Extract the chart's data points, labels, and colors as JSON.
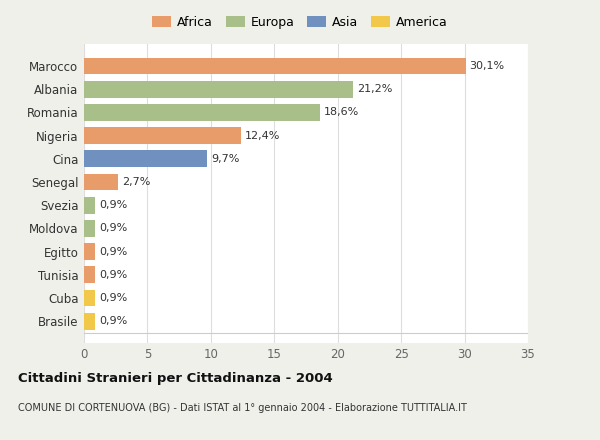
{
  "categories": [
    "Brasile",
    "Cuba",
    "Tunisia",
    "Egitto",
    "Moldova",
    "Svezia",
    "Senegal",
    "Cina",
    "Nigeria",
    "Romania",
    "Albania",
    "Marocco"
  ],
  "values": [
    0.9,
    0.9,
    0.9,
    0.9,
    0.9,
    0.9,
    2.7,
    9.7,
    12.4,
    18.6,
    21.2,
    30.1
  ],
  "labels": [
    "0,9%",
    "0,9%",
    "0,9%",
    "0,9%",
    "0,9%",
    "0,9%",
    "2,7%",
    "9,7%",
    "12,4%",
    "18,6%",
    "21,2%",
    "30,1%"
  ],
  "colors": [
    "#F2C84B",
    "#F2C84B",
    "#E89C6A",
    "#E89C6A",
    "#A8BF8A",
    "#A8BF8A",
    "#E89C6A",
    "#7090C0",
    "#E89C6A",
    "#A8BF8A",
    "#A8BF8A",
    "#E89C6A"
  ],
  "legend_order": [
    "Africa",
    "Europa",
    "Asia",
    "America"
  ],
  "legend_colors": {
    "Africa": "#E89C6A",
    "Europa": "#A8BF8A",
    "Asia": "#7090C0",
    "America": "#F2C84B"
  },
  "title": "Cittadini Stranieri per Cittadinanza - 2004",
  "subtitle": "COMUNE DI CORTENUOVA (BG) - Dati ISTAT al 1° gennaio 2004 - Elaborazione TUTTITALIA.IT",
  "xlim": [
    0,
    35
  ],
  "xticks": [
    0,
    5,
    10,
    15,
    20,
    25,
    30,
    35
  ],
  "fig_bg": "#f0f0eb",
  "plot_bg": "#ffffff",
  "grid_color": "#dddddd",
  "label_color": "#333333",
  "tick_color": "#666666"
}
